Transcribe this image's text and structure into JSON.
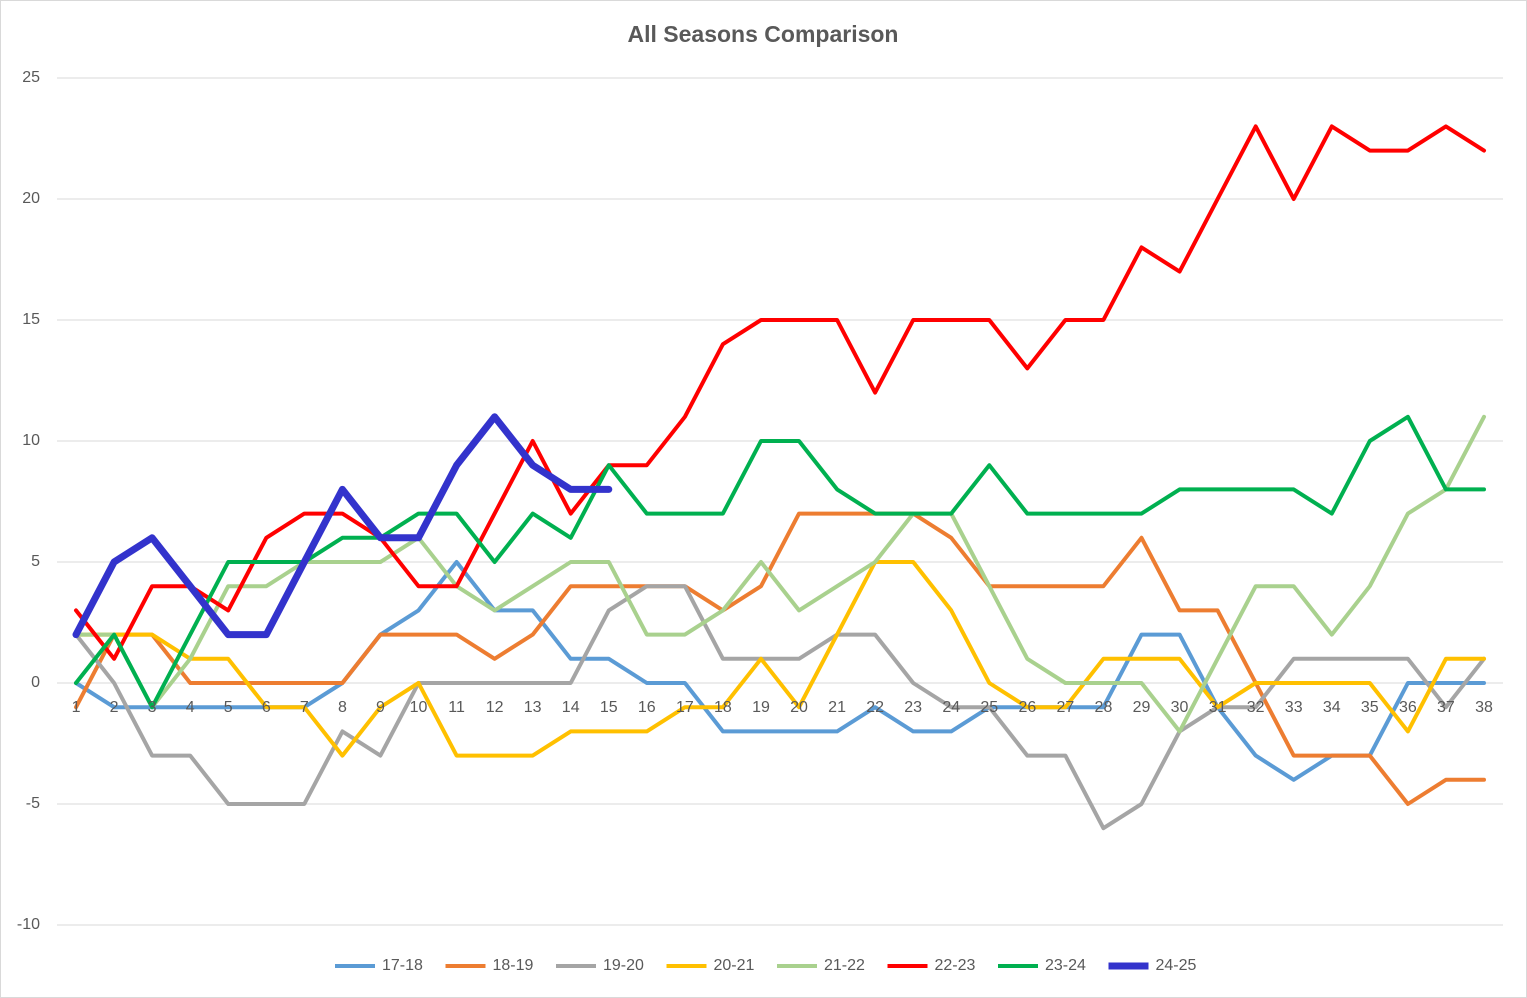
{
  "chart_data": {
    "type": "line",
    "title": "All Seasons Comparison",
    "categories": [
      "1",
      "2",
      "3",
      "4",
      "5",
      "6",
      "7",
      "8",
      "9",
      "10",
      "11",
      "12",
      "13",
      "14",
      "15",
      "16",
      "17",
      "18",
      "19",
      "20",
      "21",
      "22",
      "23",
      "24",
      "25",
      "26",
      "27",
      "28",
      "29",
      "30",
      "31",
      "32",
      "33",
      "34",
      "35",
      "36",
      "37",
      "38"
    ],
    "series": [
      {
        "name": "17-18",
        "color": "#5b9bd5",
        "values": [
          0,
          -1,
          -1,
          -1,
          -1,
          -1,
          -1,
          0,
          2,
          3,
          5,
          3,
          3,
          1,
          1,
          0,
          0,
          -2,
          -2,
          -2,
          -2,
          -1,
          -2,
          -2,
          -1,
          -1,
          -1,
          -1,
          2,
          2,
          -1,
          -3,
          -4,
          -3,
          -3,
          0,
          0,
          0
        ]
      },
      {
        "name": "18-19",
        "color": "#ed7d31",
        "values": [
          -1,
          2,
          2,
          0,
          0,
          0,
          0,
          0,
          2,
          2,
          2,
          1,
          2,
          4,
          4,
          4,
          4,
          3,
          4,
          7,
          7,
          7,
          7,
          6,
          4,
          4,
          4,
          4,
          6,
          3,
          3,
          0,
          -3,
          -3,
          -3,
          -5,
          -4,
          -4
        ]
      },
      {
        "name": "19-20",
        "color": "#a5a5a5",
        "values": [
          2,
          0,
          -3,
          -3,
          -5,
          -5,
          -5,
          -2,
          -3,
          0,
          0,
          0,
          0,
          0,
          3,
          4,
          4,
          1,
          1,
          1,
          2,
          2,
          0,
          -1,
          -1,
          -3,
          -3,
          -6,
          -5,
          -2,
          -1,
          -1,
          1,
          1,
          1,
          1,
          -1,
          1
        ]
      },
      {
        "name": "20-21",
        "color": "#ffc000",
        "values": [
          2,
          2,
          2,
          1,
          1,
          -1,
          -1,
          -3,
          -1,
          0,
          -3,
          -3,
          -3,
          -2,
          -2,
          -2,
          -1,
          -1,
          1,
          -1,
          2,
          5,
          5,
          3,
          0,
          -1,
          -1,
          1,
          1,
          1,
          -1,
          0,
          0,
          0,
          0,
          -2,
          1,
          1
        ]
      },
      {
        "name": "21-22",
        "color": "#a9d18e",
        "values": [
          2,
          2,
          -1,
          1,
          4,
          4,
          5,
          5,
          5,
          6,
          4,
          3,
          4,
          5,
          5,
          2,
          2,
          3,
          5,
          3,
          4,
          5,
          7,
          7,
          4,
          1,
          0,
          0,
          0,
          -2,
          1,
          4,
          4,
          2,
          4,
          7,
          8,
          11
        ]
      },
      {
        "name": "22-23",
        "color": "#ff0000",
        "values": [
          3,
          1,
          4,
          4,
          3,
          6,
          7,
          7,
          6,
          4,
          4,
          7,
          10,
          7,
          9,
          9,
          11,
          14,
          15,
          15,
          15,
          12,
          15,
          15,
          15,
          13,
          15,
          15,
          18,
          17,
          20,
          23,
          20,
          23,
          22,
          22,
          23,
          22
        ]
      },
      {
        "name": "23-24",
        "color": "#00b050",
        "values": [
          0,
          2,
          -1,
          2,
          5,
          5,
          5,
          6,
          6,
          7,
          7,
          5,
          7,
          6,
          9,
          7,
          7,
          7,
          10,
          10,
          8,
          7,
          7,
          7,
          9,
          7,
          7,
          7,
          7,
          8,
          8,
          8,
          8,
          7,
          10,
          11,
          8,
          8
        ]
      },
      {
        "name": "24-25",
        "color": "#3333cc",
        "values": [
          2,
          5,
          6,
          4,
          2,
          2,
          5,
          8,
          6,
          6,
          9,
          11,
          9,
          8,
          8,
          null,
          null,
          null,
          null,
          null,
          null,
          null,
          null,
          null,
          null,
          null,
          null,
          null,
          null,
          null,
          null,
          null,
          null,
          null,
          null,
          null,
          null,
          null
        ]
      }
    ],
    "ylim": [
      -10,
      25
    ],
    "yticks": [
      -10,
      -5,
      0,
      5,
      10,
      15,
      20,
      25
    ],
    "grid": true,
    "legend": "bottom"
  }
}
